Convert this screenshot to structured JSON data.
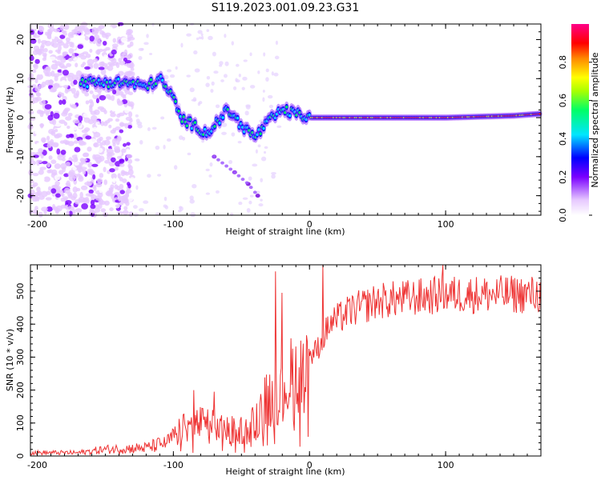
{
  "title": "S119.2023.001.09.23.G31",
  "chart_data": [
    {
      "type": "heatmap",
      "xlabel": "Height of straight line (km)",
      "ylabel": "Frequency (Hz)",
      "xlim": [
        -205,
        170
      ],
      "ylim": [
        -25,
        24
      ],
      "xticks": [
        -200,
        -100,
        0,
        100
      ],
      "yticks": [
        -20,
        -10,
        0,
        10,
        20
      ],
      "colorbar": {
        "label": "Normalized spectral amplitude",
        "range": [
          0,
          1
        ],
        "ticks": [
          0.0,
          0.2,
          0.4,
          0.6,
          0.8
        ]
      },
      "ridge": [
        {
          "x": -165,
          "y": 9
        },
        {
          "x": -150,
          "y": 9
        },
        {
          "x": -135,
          "y": 9
        },
        {
          "x": -120,
          "y": 8
        },
        {
          "x": -110,
          "y": 10
        },
        {
          "x": -100,
          "y": 5
        },
        {
          "x": -95,
          "y": 0
        },
        {
          "x": -85,
          "y": -2
        },
        {
          "x": -75,
          "y": -4
        },
        {
          "x": -60,
          "y": 2
        },
        {
          "x": -50,
          "y": -2
        },
        {
          "x": -40,
          "y": -5
        },
        {
          "x": -30,
          "y": -1
        },
        {
          "x": -20,
          "y": 2
        },
        {
          "x": -10,
          "y": 1
        },
        {
          "x": 0,
          "y": 0
        },
        {
          "x": 50,
          "y": 0
        },
        {
          "x": 100,
          "y": 0
        },
        {
          "x": 150,
          "y": 0.5
        },
        {
          "x": 170,
          "y": 1
        }
      ],
      "secondary_branch": [
        {
          "x": -70,
          "y": -10
        },
        {
          "x": -55,
          "y": -14
        },
        {
          "x": -45,
          "y": -17
        },
        {
          "x": -38,
          "y": -20
        }
      ]
    },
    {
      "type": "line",
      "xlabel": "Height of straight line (km)",
      "ylabel": "SNR (10 * v/v)",
      "xlim": [
        -205,
        170
      ],
      "ylim": [
        0,
        580
      ],
      "xticks": [
        -200,
        -100,
        0,
        100
      ],
      "yticks": [
        0,
        100,
        200,
        300,
        400,
        500
      ],
      "series": [
        {
          "color": "#ee3333",
          "trend": [
            {
              "x": -205,
              "y": 10
            },
            {
              "x": -170,
              "y": 10
            },
            {
              "x": -150,
              "y": 20
            },
            {
              "x": -120,
              "y": 25
            },
            {
              "x": -105,
              "y": 40
            },
            {
              "x": -95,
              "y": 80
            },
            {
              "x": -80,
              "y": 100
            },
            {
              "x": -60,
              "y": 80
            },
            {
              "x": -45,
              "y": 80
            },
            {
              "x": -35,
              "y": 150
            },
            {
              "x": -25,
              "y": 200
            },
            {
              "x": -15,
              "y": 230
            },
            {
              "x": -5,
              "y": 280
            },
            {
              "x": 5,
              "y": 320
            },
            {
              "x": 15,
              "y": 400
            },
            {
              "x": 30,
              "y": 440
            },
            {
              "x": 50,
              "y": 470
            },
            {
              "x": 75,
              "y": 480
            },
            {
              "x": 100,
              "y": 490
            },
            {
              "x": 130,
              "y": 490
            },
            {
              "x": 170,
              "y": 490
            }
          ],
          "spikes": [
            {
              "x": -85,
              "y": 200
            },
            {
              "x": -70,
              "y": 195
            },
            {
              "x": -25,
              "y": 560
            },
            {
              "x": -20,
              "y": 495
            },
            {
              "x": 10,
              "y": 580
            },
            {
              "x": 98,
              "y": 580
            }
          ]
        }
      ]
    }
  ]
}
